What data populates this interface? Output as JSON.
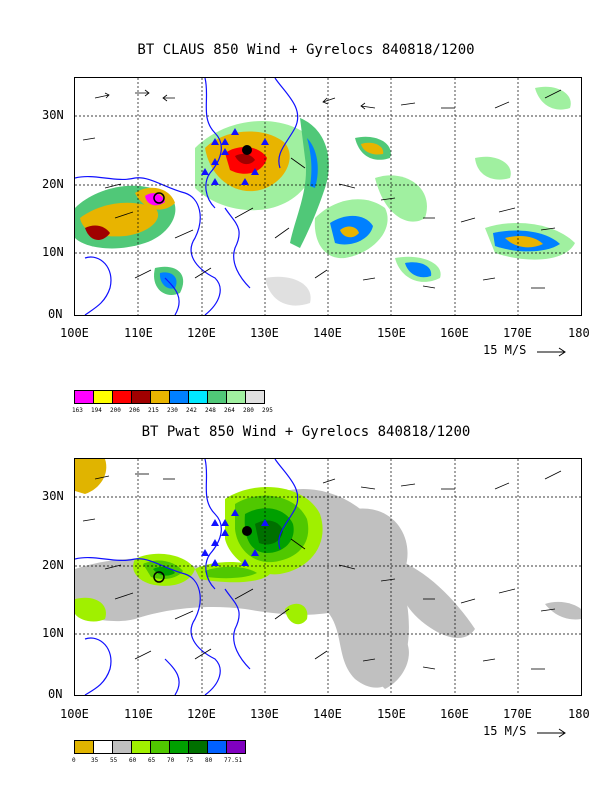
{
  "panel1": {
    "title": "BT CLAUS 850 Wind + Gyrelocs 840818/1200",
    "y_ticks": [
      "30N",
      "20N",
      "10N",
      "0N"
    ],
    "x_ticks": [
      "100E",
      "110E",
      "120E",
      "130E",
      "140E",
      "150E",
      "160E",
      "170E",
      "180"
    ],
    "scale_label": "15 M/S",
    "colorbar_colors": [
      "#ff00ff",
      "#ffff00",
      "#ff0000",
      "#a00000",
      "#e8b400",
      "#0080ff",
      "#00e8ff",
      "#50c878",
      "#a0f0a0",
      "#e0e0e0"
    ],
    "colorbar_labels": [
      "163",
      "194",
      "200",
      "206",
      "215",
      "230",
      "242",
      "248",
      "264",
      "280",
      "295"
    ]
  },
  "panel2": {
    "title": "BT Pwat 850 Wind + Gyrelocs 840818/1200",
    "y_ticks": [
      "30N",
      "20N",
      "10N",
      "0N"
    ],
    "x_ticks": [
      "100E",
      "110E",
      "120E",
      "130E",
      "140E",
      "150E",
      "160E",
      "170E",
      "180"
    ],
    "scale_label": "15 M/S",
    "colorbar_colors": [
      "#e0b400",
      "#ffffff",
      "#c0c0c0",
      "#a0f000",
      "#50c800",
      "#00a000",
      "#007000",
      "#0060ff",
      "#8000c0"
    ],
    "colorbar_labels": [
      "0",
      "35",
      "55",
      "60",
      "65",
      "70",
      "75",
      "80",
      "77.51"
    ]
  }
}
